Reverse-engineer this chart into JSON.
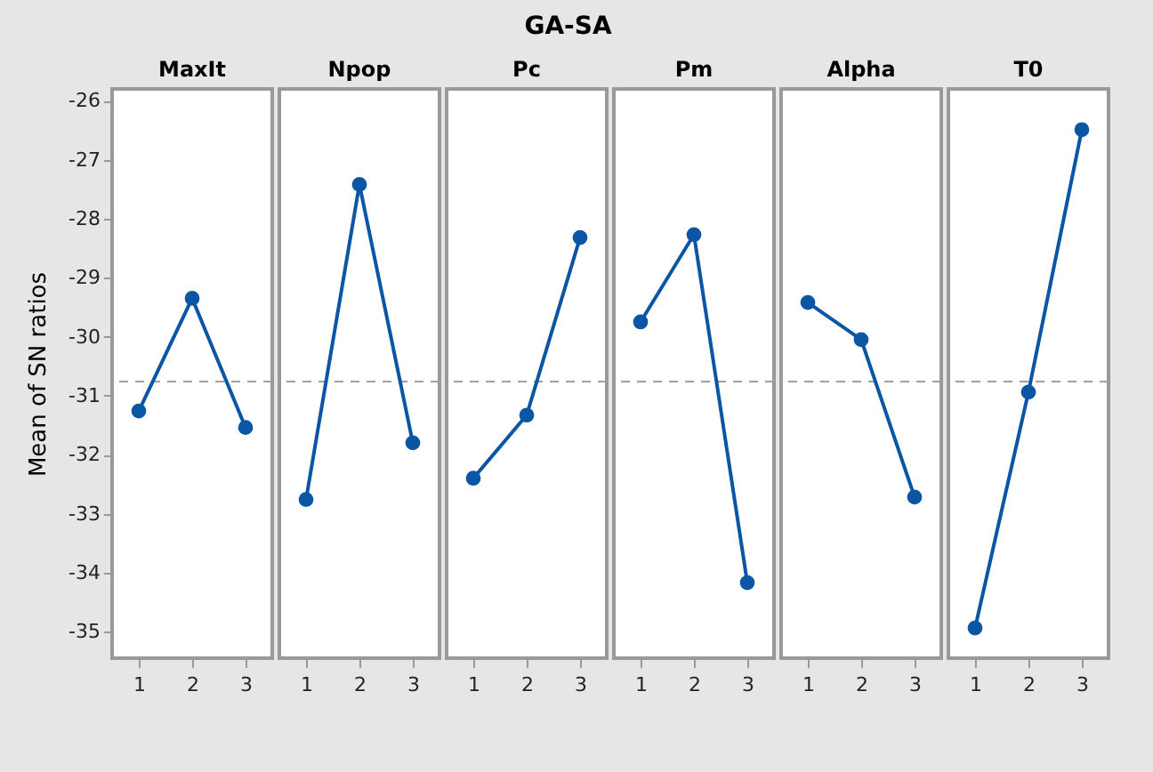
{
  "chart_data": [
    {
      "type": "line",
      "title": "MaxIt",
      "annotations": [
        "GA-SA"
      ],
      "ylabel": "Mean of SN ratios",
      "categories": [
        "1",
        "2",
        "3"
      ],
      "series": [
        {
          "color": "#0b55a5",
          "values": [
            -31.26,
            -29.35,
            -31.54
          ]
        }
      ],
      "ylim": [
        -35.45,
        -25.8
      ],
      "yticks": [
        -35,
        -34,
        -33,
        -32,
        -31,
        -30,
        -29,
        -28,
        -27,
        -26
      ],
      "ref_lines": [
        {
          "axis": "y",
          "value": -30.76,
          "color": "#a0a0a0",
          "line_style": "dashed"
        }
      ],
      "marker": "circle",
      "line_style": "solid"
    },
    {
      "type": "line",
      "title": "Npop",
      "categories": [
        "1",
        "2",
        "3"
      ],
      "series": [
        {
          "color": "#0b55a5",
          "values": [
            -32.76,
            -27.42,
            -31.8
          ]
        }
      ],
      "ylim": [
        -35.45,
        -25.8
      ],
      "tick_labels": "x",
      "ref_lines": [
        {
          "axis": "y",
          "value": -30.76,
          "color": "#a0a0a0",
          "line_style": "dashed"
        }
      ],
      "marker": "circle",
      "line_style": "solid"
    },
    {
      "type": "line",
      "title": "Pc",
      "categories": [
        "1",
        "2",
        "3"
      ],
      "series": [
        {
          "color": "#0b55a5",
          "values": [
            -32.4,
            -31.33,
            -28.32
          ]
        }
      ],
      "ylim": [
        -35.45,
        -25.8
      ],
      "tick_labels": "x",
      "ref_lines": [
        {
          "axis": "y",
          "value": -30.76,
          "color": "#a0a0a0",
          "line_style": "dashed"
        }
      ],
      "marker": "circle",
      "line_style": "solid"
    },
    {
      "type": "line",
      "title": "Pm",
      "categories": [
        "1",
        "2",
        "3"
      ],
      "series": [
        {
          "color": "#0b55a5",
          "values": [
            -29.75,
            -28.27,
            -34.17
          ]
        }
      ],
      "ylim": [
        -35.45,
        -25.8
      ],
      "tick_labels": "x",
      "ref_lines": [
        {
          "axis": "y",
          "value": -30.76,
          "color": "#a0a0a0",
          "line_style": "dashed"
        }
      ],
      "marker": "circle",
      "line_style": "solid"
    },
    {
      "type": "line",
      "title": "Alpha",
      "categories": [
        "1",
        "2",
        "3"
      ],
      "series": [
        {
          "color": "#0b55a5",
          "values": [
            -29.42,
            -30.05,
            -32.72
          ]
        }
      ],
      "ylim": [
        -35.45,
        -25.8
      ],
      "tick_labels": "x",
      "ref_lines": [
        {
          "axis": "y",
          "value": -30.76,
          "color": "#a0a0a0",
          "line_style": "dashed"
        }
      ],
      "marker": "circle",
      "line_style": "solid"
    },
    {
      "type": "line",
      "title": "T0",
      "categories": [
        "1",
        "2",
        "3"
      ],
      "series": [
        {
          "color": "#0b55a5",
          "values": [
            -34.94,
            -30.94,
            -26.49
          ]
        }
      ],
      "ylim": [
        -35.45,
        -25.8
      ],
      "tick_labels": "x",
      "ref_lines": [
        {
          "axis": "y",
          "value": -30.76,
          "color": "#a0a0a0",
          "line_style": "dashed"
        }
      ],
      "marker": "circle",
      "line_style": "solid"
    }
  ]
}
